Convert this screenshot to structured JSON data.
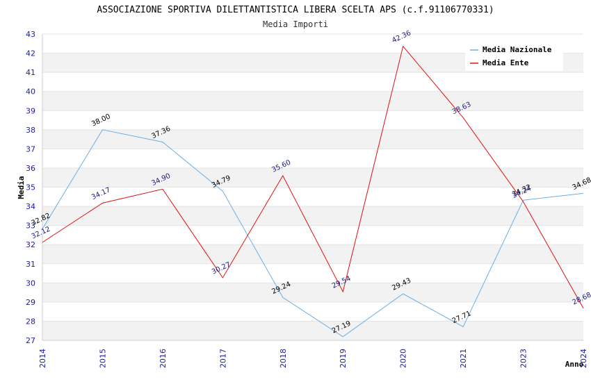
{
  "chart_data": {
    "type": "line",
    "title": "ASSOCIAZIONE SPORTIVA DILETTANTISTICA LIBERA SCELTA APS (c.f.91106770331)",
    "subtitle": "Media Importi",
    "xlabel": "Anno",
    "ylabel": "Media",
    "categories": [
      "2014",
      "2015",
      "2016",
      "2017",
      "2018",
      "2019",
      "2020",
      "2021",
      "2023",
      "2024"
    ],
    "ylim": [
      27,
      43
    ],
    "yticks": [
      27,
      28,
      29,
      30,
      31,
      32,
      33,
      34,
      35,
      36,
      37,
      38,
      39,
      40,
      41,
      42,
      43
    ],
    "legend_position": "top-right",
    "grid": true,
    "series": [
      {
        "name": "Media Nazionale",
        "color": "#6aaee6",
        "label_color": "#000000",
        "values": [
          32.82,
          38.0,
          37.36,
          34.79,
          29.24,
          27.19,
          29.43,
          27.71,
          34.32,
          34.68
        ],
        "labels": [
          "32.82",
          "38.00",
          "37.36",
          "34.79",
          "29.24",
          "27.19",
          "29.43",
          "27.71",
          "34.32",
          "34.68"
        ]
      },
      {
        "name": "Media Ente",
        "color": "#e01010",
        "label_color": "#1a1a80",
        "values": [
          32.12,
          34.17,
          34.9,
          30.27,
          35.6,
          29.54,
          42.36,
          38.63,
          34.24,
          28.68
        ],
        "labels": [
          "32.12",
          "34.17",
          "34.90",
          "30.27",
          "35.60",
          "29.54",
          "42.36",
          "38.63",
          "34.24",
          "28.68"
        ]
      }
    ]
  }
}
